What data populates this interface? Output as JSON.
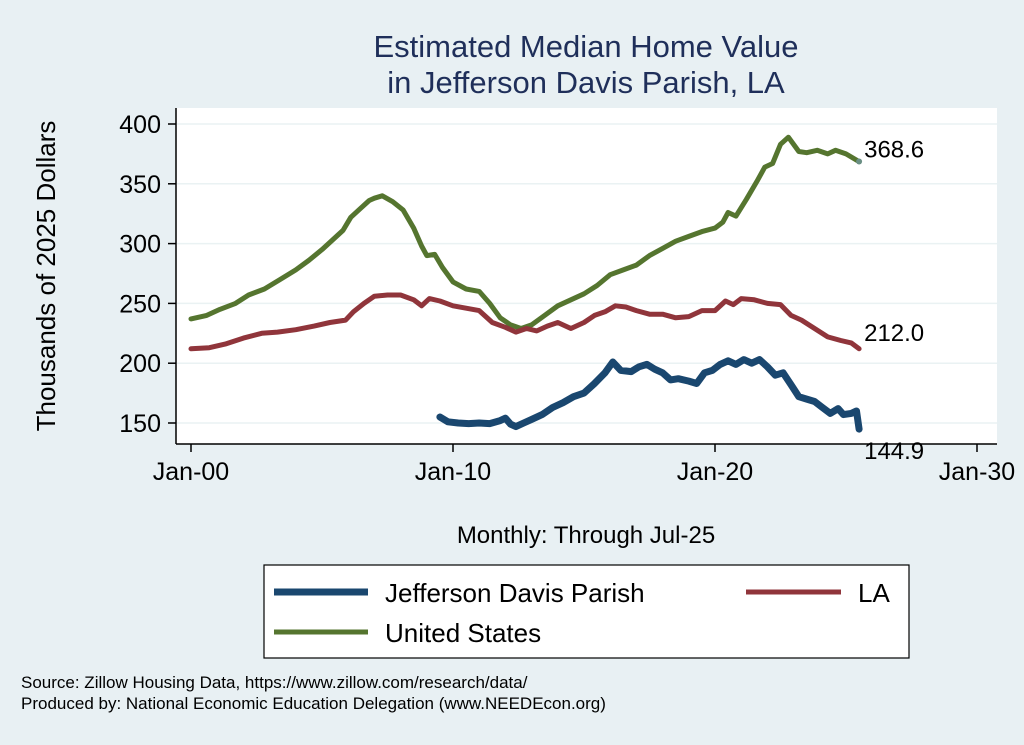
{
  "chart_data": {
    "type": "line",
    "title": [
      "Estimated Median Home Value",
      "in Jefferson Davis Parish, LA"
    ],
    "xlabel": "Monthly: Through Jul-25",
    "ylabel": "Thousands of 2025 Dollars",
    "xlim": [
      2000,
      2030
    ],
    "ylim": [
      132,
      412
    ],
    "x_ticks": [
      {
        "value": 2000,
        "label": "Jan-00"
      },
      {
        "value": 2010,
        "label": "Jan-10"
      },
      {
        "value": 2020,
        "label": "Jan-20"
      },
      {
        "value": 2030,
        "label": "Jan-30"
      }
    ],
    "y_ticks": [
      150,
      200,
      250,
      300,
      350,
      400
    ],
    "grid": true,
    "legend_position": "bottom",
    "series": [
      {
        "name": "Jefferson Davis Parish",
        "color": "#1a476f",
        "end_label": "144.9",
        "points": [
          [
            2009.5,
            155
          ],
          [
            2009.8,
            151
          ],
          [
            2010.2,
            150
          ],
          [
            2010.6,
            149.5
          ],
          [
            2011.0,
            150
          ],
          [
            2011.4,
            149.5
          ],
          [
            2011.8,
            152
          ],
          [
            2012.0,
            154
          ],
          [
            2012.2,
            149
          ],
          [
            2012.4,
            147
          ],
          [
            2012.7,
            150
          ],
          [
            2013.0,
            153
          ],
          [
            2013.4,
            157
          ],
          [
            2013.8,
            163
          ],
          [
            2014.2,
            167
          ],
          [
            2014.6,
            172
          ],
          [
            2015.0,
            175
          ],
          [
            2015.4,
            183
          ],
          [
            2015.8,
            192
          ],
          [
            2016.1,
            201
          ],
          [
            2016.4,
            194
          ],
          [
            2016.8,
            193
          ],
          [
            2017.1,
            197
          ],
          [
            2017.4,
            199
          ],
          [
            2017.7,
            195
          ],
          [
            2018.0,
            192
          ],
          [
            2018.3,
            186
          ],
          [
            2018.6,
            187
          ],
          [
            2019.0,
            185
          ],
          [
            2019.3,
            183
          ],
          [
            2019.6,
            192
          ],
          [
            2019.9,
            194
          ],
          [
            2020.2,
            199
          ],
          [
            2020.5,
            202
          ],
          [
            2020.8,
            199
          ],
          [
            2021.1,
            203
          ],
          [
            2021.4,
            200
          ],
          [
            2021.7,
            203
          ],
          [
            2022.0,
            197
          ],
          [
            2022.3,
            190
          ],
          [
            2022.6,
            192
          ],
          [
            2022.9,
            182
          ],
          [
            2023.2,
            172
          ],
          [
            2023.5,
            170
          ],
          [
            2023.8,
            168
          ],
          [
            2024.1,
            163
          ],
          [
            2024.4,
            158
          ],
          [
            2024.7,
            162
          ],
          [
            2024.9,
            157
          ],
          [
            2025.2,
            158
          ],
          [
            2025.4,
            160
          ],
          [
            2025.5,
            144.9
          ]
        ]
      },
      {
        "name": "LA",
        "color": "#90353b",
        "end_label": "212.0",
        "points": [
          [
            2000.0,
            212
          ],
          [
            2000.7,
            213
          ],
          [
            2001.3,
            216
          ],
          [
            2002.0,
            221
          ],
          [
            2002.7,
            225
          ],
          [
            2003.3,
            226
          ],
          [
            2004.0,
            228
          ],
          [
            2004.7,
            231
          ],
          [
            2005.3,
            234
          ],
          [
            2005.9,
            236
          ],
          [
            2006.2,
            243
          ],
          [
            2006.6,
            250
          ],
          [
            2007.0,
            256
          ],
          [
            2007.5,
            257
          ],
          [
            2008.0,
            257
          ],
          [
            2008.5,
            253
          ],
          [
            2008.8,
            248
          ],
          [
            2009.1,
            254
          ],
          [
            2009.5,
            252
          ],
          [
            2010.0,
            248
          ],
          [
            2010.5,
            246
          ],
          [
            2011.0,
            244
          ],
          [
            2011.5,
            234
          ],
          [
            2012.0,
            230
          ],
          [
            2012.4,
            226
          ],
          [
            2012.8,
            229
          ],
          [
            2013.2,
            227
          ],
          [
            2013.6,
            231
          ],
          [
            2014.0,
            234
          ],
          [
            2014.5,
            229
          ],
          [
            2015.0,
            234
          ],
          [
            2015.4,
            240
          ],
          [
            2015.8,
            243
          ],
          [
            2016.2,
            248
          ],
          [
            2016.6,
            247
          ],
          [
            2017.0,
            244
          ],
          [
            2017.5,
            241
          ],
          [
            2018.0,
            241
          ],
          [
            2018.5,
            238
          ],
          [
            2019.0,
            239
          ],
          [
            2019.5,
            244
          ],
          [
            2020.0,
            244
          ],
          [
            2020.4,
            252
          ],
          [
            2020.7,
            249
          ],
          [
            2021.0,
            254
          ],
          [
            2021.5,
            253
          ],
          [
            2022.0,
            250
          ],
          [
            2022.5,
            249
          ],
          [
            2022.9,
            240
          ],
          [
            2023.3,
            236
          ],
          [
            2023.8,
            229
          ],
          [
            2024.3,
            222
          ],
          [
            2024.8,
            219
          ],
          [
            2025.2,
            217
          ],
          [
            2025.5,
            212.0
          ]
        ]
      },
      {
        "name": "United States",
        "color": "#55752f",
        "end_label": "368.6",
        "points": [
          [
            2000.0,
            237
          ],
          [
            2000.6,
            240
          ],
          [
            2001.1,
            245
          ],
          [
            2001.7,
            250
          ],
          [
            2002.2,
            257
          ],
          [
            2002.8,
            262
          ],
          [
            2003.4,
            270
          ],
          [
            2004.0,
            278
          ],
          [
            2004.5,
            286
          ],
          [
            2005.0,
            295
          ],
          [
            2005.4,
            303
          ],
          [
            2005.8,
            311
          ],
          [
            2006.1,
            322
          ],
          [
            2006.5,
            330
          ],
          [
            2006.8,
            336
          ],
          [
            2007.0,
            338
          ],
          [
            2007.3,
            340
          ],
          [
            2007.7,
            335
          ],
          [
            2008.1,
            328
          ],
          [
            2008.5,
            313
          ],
          [
            2008.8,
            298
          ],
          [
            2009.0,
            290
          ],
          [
            2009.3,
            291
          ],
          [
            2009.6,
            280
          ],
          [
            2010.0,
            268
          ],
          [
            2010.5,
            262
          ],
          [
            2011.0,
            260
          ],
          [
            2011.4,
            250
          ],
          [
            2011.8,
            238
          ],
          [
            2012.2,
            232
          ],
          [
            2012.6,
            229
          ],
          [
            2013.0,
            232
          ],
          [
            2013.5,
            240
          ],
          [
            2014.0,
            248
          ],
          [
            2014.5,
            253
          ],
          [
            2015.0,
            258
          ],
          [
            2015.5,
            265
          ],
          [
            2016.0,
            274
          ],
          [
            2016.5,
            278
          ],
          [
            2017.0,
            282
          ],
          [
            2017.5,
            290
          ],
          [
            2018.0,
            296
          ],
          [
            2018.5,
            302
          ],
          [
            2019.0,
            306
          ],
          [
            2019.5,
            310
          ],
          [
            2020.0,
            313
          ],
          [
            2020.3,
            318
          ],
          [
            2020.5,
            326
          ],
          [
            2020.8,
            323
          ],
          [
            2021.2,
            337
          ],
          [
            2021.6,
            352
          ],
          [
            2021.9,
            364
          ],
          [
            2022.2,
            367
          ],
          [
            2022.5,
            383
          ],
          [
            2022.8,
            389
          ],
          [
            2023.2,
            377
          ],
          [
            2023.5,
            376
          ],
          [
            2023.9,
            378
          ],
          [
            2024.3,
            375
          ],
          [
            2024.6,
            378
          ],
          [
            2025.0,
            375
          ],
          [
            2025.5,
            368.6
          ]
        ]
      }
    ]
  },
  "legend": {
    "items": [
      {
        "label": "Jefferson Davis Parish",
        "color": "#1a476f"
      },
      {
        "label": "LA",
        "color": "#90353b"
      },
      {
        "label": "United States",
        "color": "#55752f"
      }
    ]
  },
  "notes": {
    "source": "Source: Zillow Housing Data, https://www.zillow.com/research/data/",
    "producer": "Produced by: National Economic Education Delegation (www.NEEDEcon.org)"
  }
}
